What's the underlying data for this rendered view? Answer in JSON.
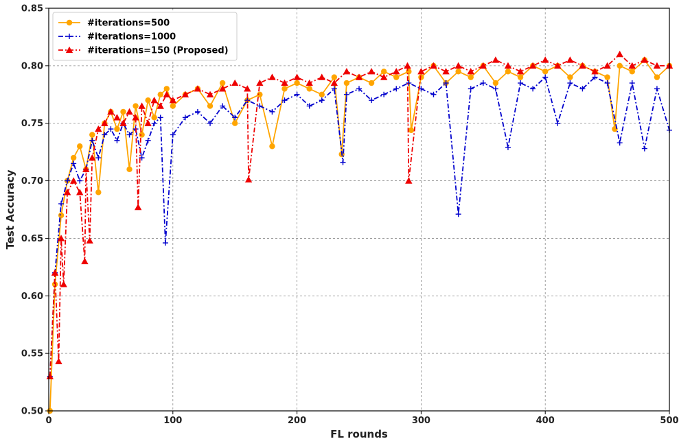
{
  "chart_data": {
    "type": "line",
    "title": "",
    "xlabel": "FL rounds",
    "ylabel": "Test Accuracy",
    "xlim": [
      0,
      500
    ],
    "ylim": [
      0.5,
      0.85
    ],
    "xticks": [
      0,
      100,
      200,
      300,
      400,
      500
    ],
    "yticks": [
      0.5,
      0.55,
      0.6,
      0.65,
      0.7,
      0.75,
      0.8,
      0.85
    ],
    "grid": true,
    "legend_position": "top-left",
    "series": [
      {
        "name": "#iterations=500",
        "color": "#FFA500",
        "line_style": "solid",
        "marker": "circle",
        "x": [
          1,
          5,
          10,
          15,
          20,
          25,
          30,
          35,
          40,
          45,
          50,
          55,
          60,
          65,
          70,
          75,
          80,
          85,
          90,
          95,
          100,
          110,
          120,
          130,
          140,
          150,
          160,
          170,
          180,
          190,
          200,
          210,
          220,
          230,
          236,
          240,
          250,
          260,
          270,
          280,
          290,
          292,
          300,
          310,
          320,
          330,
          340,
          350,
          360,
          370,
          380,
          390,
          400,
          410,
          420,
          430,
          440,
          450,
          456,
          460,
          470,
          480,
          490,
          500
        ],
        "y": [
          0.5,
          0.61,
          0.67,
          0.7,
          0.72,
          0.73,
          0.71,
          0.74,
          0.69,
          0.75,
          0.76,
          0.745,
          0.76,
          0.71,
          0.765,
          0.74,
          0.77,
          0.755,
          0.775,
          0.78,
          0.765,
          0.775,
          0.78,
          0.765,
          0.785,
          0.75,
          0.77,
          0.775,
          0.73,
          0.78,
          0.785,
          0.78,
          0.775,
          0.79,
          0.723,
          0.785,
          0.79,
          0.785,
          0.795,
          0.79,
          0.795,
          0.744,
          0.79,
          0.8,
          0.785,
          0.795,
          0.79,
          0.8,
          0.785,
          0.795,
          0.79,
          0.8,
          0.795,
          0.8,
          0.79,
          0.8,
          0.795,
          0.79,
          0.745,
          0.8,
          0.795,
          0.805,
          0.79,
          0.8
        ]
      },
      {
        "name": "#iterations=1000",
        "color": "#0000CD",
        "line_style": "dashdot",
        "marker": "plus",
        "x": [
          1,
          5,
          10,
          15,
          20,
          25,
          30,
          35,
          40,
          45,
          50,
          55,
          60,
          65,
          70,
          75,
          80,
          85,
          90,
          94,
          100,
          110,
          120,
          130,
          140,
          150,
          160,
          170,
          180,
          190,
          200,
          210,
          220,
          230,
          237,
          240,
          250,
          260,
          270,
          280,
          290,
          300,
          310,
          320,
          330,
          340,
          350,
          360,
          370,
          380,
          390,
          400,
          410,
          420,
          430,
          440,
          450,
          460,
          470,
          480,
          490,
          500
        ],
        "y": [
          0.53,
          0.62,
          0.68,
          0.7,
          0.715,
          0.7,
          0.71,
          0.735,
          0.72,
          0.74,
          0.745,
          0.735,
          0.75,
          0.74,
          0.745,
          0.72,
          0.735,
          0.75,
          0.755,
          0.646,
          0.74,
          0.755,
          0.76,
          0.75,
          0.765,
          0.755,
          0.77,
          0.765,
          0.76,
          0.77,
          0.775,
          0.765,
          0.77,
          0.78,
          0.716,
          0.775,
          0.78,
          0.77,
          0.775,
          0.78,
          0.785,
          0.78,
          0.775,
          0.785,
          0.671,
          0.78,
          0.785,
          0.78,
          0.729,
          0.785,
          0.78,
          0.79,
          0.75,
          0.785,
          0.78,
          0.79,
          0.785,
          0.733,
          0.785,
          0.728,
          0.78,
          0.744
        ]
      },
      {
        "name": "#iterations=150 (Proposed)",
        "color": "#EE0000",
        "line_style": "dashdot",
        "marker": "triangle",
        "x": [
          1,
          5,
          8,
          10,
          12,
          15,
          20,
          25,
          29,
          30,
          33,
          35,
          40,
          45,
          50,
          55,
          60,
          65,
          70,
          72,
          75,
          80,
          85,
          90,
          95,
          100,
          110,
          120,
          130,
          140,
          150,
          160,
          161,
          170,
          180,
          190,
          200,
          210,
          220,
          230,
          240,
          250,
          260,
          270,
          280,
          289,
          290,
          300,
          310,
          320,
          330,
          340,
          350,
          360,
          370,
          380,
          390,
          400,
          410,
          420,
          430,
          440,
          450,
          460,
          470,
          480,
          490,
          500
        ],
        "y": [
          0.53,
          0.62,
          0.543,
          0.65,
          0.61,
          0.69,
          0.7,
          0.69,
          0.63,
          0.71,
          0.648,
          0.72,
          0.745,
          0.75,
          0.76,
          0.755,
          0.75,
          0.76,
          0.755,
          0.677,
          0.765,
          0.75,
          0.77,
          0.765,
          0.775,
          0.77,
          0.775,
          0.78,
          0.775,
          0.78,
          0.785,
          0.78,
          0.701,
          0.785,
          0.79,
          0.785,
          0.79,
          0.785,
          0.79,
          0.785,
          0.795,
          0.79,
          0.795,
          0.79,
          0.795,
          0.8,
          0.7,
          0.795,
          0.8,
          0.795,
          0.8,
          0.795,
          0.8,
          0.805,
          0.8,
          0.795,
          0.8,
          0.805,
          0.8,
          0.805,
          0.8,
          0.795,
          0.8,
          0.81,
          0.8,
          0.805,
          0.8,
          0.8
        ]
      }
    ]
  }
}
